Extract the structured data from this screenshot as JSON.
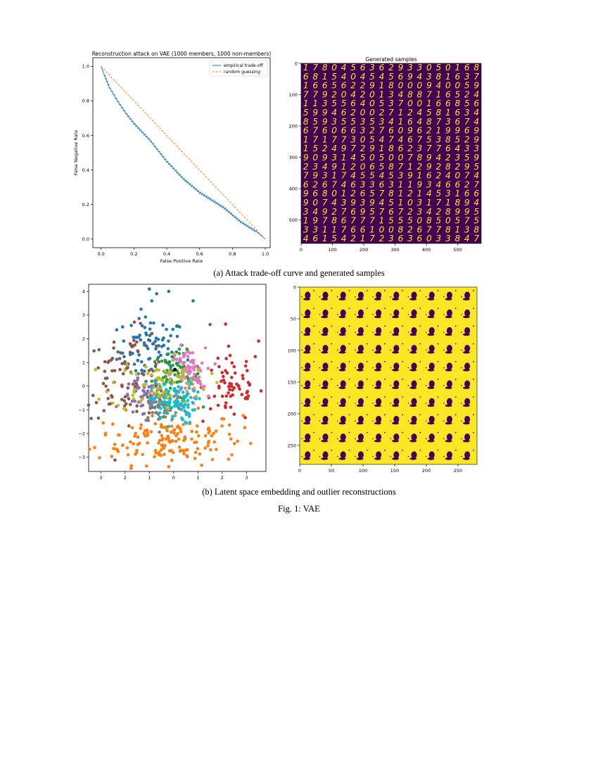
{
  "figure": {
    "caption_a": "(a) Attack trade-off curve and generated samples",
    "caption_b": "(b) Latent space embedding and outlier reconstructions",
    "caption_fig": "Fig. 1: VAE"
  },
  "colors": {
    "viridis_dark": "#440154",
    "viridis_yellow": "#fde725",
    "line_blue": "#1f77b4",
    "line_orange": "#ff7f0e"
  },
  "samples_panel": {
    "title": "Generated samples",
    "x_ticks": [
      "0",
      "100",
      "200",
      "300",
      "400",
      "500"
    ],
    "y_ticks": [
      "0",
      "100",
      "200",
      "300",
      "400",
      "500"
    ],
    "digit_rows": [
      "1780456362933050168",
      "6815404545694381637",
      "1665622918000940059",
      "7792042013488716524",
      "1135564053700166856",
      "5994620027124581634",
      "8593553534164873674",
      "6760663276096219969",
      "1717730547467538529",
      "1524972918623776433",
      "9093145050078942359",
      "2349120658712928295",
      "7931745545391624074",
      "6267463363119346627",
      "9680126578121453166",
      "9074393945103171894",
      "3492769576723428995",
      "1978677715550850575",
      "3311766100826778138",
      "4615421723636033847"
    ]
  },
  "outliers_panel": {
    "x_ticks": [
      "0",
      "50",
      "100",
      "150",
      "200",
      "250"
    ],
    "y_ticks": [
      "0",
      "50",
      "100",
      "150",
      "200",
      "250"
    ]
  },
  "chart_data": [
    {
      "type": "line",
      "title": "Reconstruction attack on VAE (1000 members, 1000 non-members)",
      "xlabel": "False Positive Rate",
      "ylabel": "False Negative Rate",
      "xlim": [
        -0.05,
        1.03
      ],
      "ylim": [
        -0.05,
        1.05
      ],
      "x_ticks": [
        0.0,
        0.2,
        0.4,
        0.6,
        0.8,
        1.0
      ],
      "y_ticks": [
        0.0,
        0.2,
        0.4,
        0.6,
        0.8,
        1.0
      ],
      "x_tick_labels": [
        "0.0",
        "0.2",
        "0.4",
        "0.6",
        "0.8",
        "1.0"
      ],
      "y_tick_labels": [
        "0.0",
        "0.2",
        "0.4",
        "0.6",
        "0.8",
        "1.0"
      ],
      "legend": "top-right",
      "grid": false,
      "series": [
        {
          "name": "empirical trade-off",
          "style": "solid",
          "x": [
            0.0,
            0.02,
            0.05,
            0.1,
            0.15,
            0.2,
            0.25,
            0.3,
            0.35,
            0.4,
            0.45,
            0.5,
            0.55,
            0.6,
            0.65,
            0.7,
            0.75,
            0.8,
            0.85,
            0.9,
            0.95,
            1.0
          ],
          "y": [
            1.0,
            0.95,
            0.88,
            0.8,
            0.73,
            0.67,
            0.62,
            0.57,
            0.51,
            0.45,
            0.4,
            0.35,
            0.31,
            0.27,
            0.24,
            0.21,
            0.18,
            0.14,
            0.1,
            0.07,
            0.04,
            0.0
          ]
        },
        {
          "name": "random guessing",
          "style": "dashed",
          "x": [
            0.0,
            1.0
          ],
          "y": [
            1.0,
            0.0
          ]
        }
      ]
    },
    {
      "type": "scatter",
      "title": "",
      "xlabel": "",
      "ylabel": "",
      "xlim": [
        -3.5,
        3.8
      ],
      "ylim": [
        -3.6,
        4.3
      ],
      "x_ticks": [
        -3,
        -2,
        -1,
        0,
        1,
        2,
        3
      ],
      "x_tick_labels": [
        "3",
        "2",
        "1",
        "0",
        "1",
        "2",
        "3"
      ],
      "y_ticks": [
        4,
        3,
        2,
        1,
        0,
        -1,
        -2,
        -3
      ],
      "y_tick_labels": [
        "4",
        "3",
        "2",
        "1",
        "0",
        "−1",
        "−2",
        "−3"
      ],
      "grid": false,
      "clusters": [
        {
          "label": "0",
          "color": "#1f77b4",
          "center": [
            -0.9,
            1.5
          ],
          "spread": [
            0.7,
            0.7
          ],
          "count": 95,
          "points": [
            [
              -1.0,
              4.1
            ],
            [
              0.8,
              3.6
            ],
            [
              -0.7,
              3.9
            ],
            [
              -2.1,
              2.5
            ],
            [
              -0.9,
              3.6
            ],
            [
              -0.2,
              4.0
            ]
          ]
        },
        {
          "label": "1",
          "color": "#ff7f0e",
          "center": [
            -0.2,
            -2.2
          ],
          "spread": [
            1.5,
            0.55
          ],
          "count": 160,
          "points": [
            [
              -0.2,
              -3.4
            ],
            [
              1.6,
              -3.1
            ],
            [
              -2.1,
              -2.5
            ]
          ]
        },
        {
          "label": "2",
          "color": "#2ca02c",
          "center": [
            0.1,
            0.4
          ],
          "spread": [
            0.5,
            0.5
          ],
          "count": 70,
          "points": []
        },
        {
          "label": "3",
          "color": "#d62728",
          "center": [
            2.4,
            0.0
          ],
          "spread": [
            0.6,
            0.8
          ],
          "count": 65,
          "points": [
            [
              3.5,
              1.9
            ],
            [
              3.6,
              -0.2
            ]
          ]
        },
        {
          "label": "4",
          "color": "#9467bd",
          "center": [
            -1.3,
            -0.5
          ],
          "spread": [
            0.4,
            0.4
          ],
          "count": 45,
          "points": []
        },
        {
          "label": "5",
          "color": "#8c564b",
          "center": [
            -1.9,
            0.5
          ],
          "spread": [
            0.9,
            0.9
          ],
          "count": 90,
          "points": [
            [
              -3.5,
              -0.8
            ],
            [
              1.5,
              2.6
            ]
          ]
        },
        {
          "label": "6",
          "color": "#e377c2",
          "center": [
            0.6,
            0.5
          ],
          "spread": [
            0.35,
            0.55
          ],
          "count": 80,
          "points": []
        },
        {
          "label": "7",
          "color": "#7f7f7f",
          "center": [
            -0.5,
            -0.8
          ],
          "spread": [
            0.45,
            0.4
          ],
          "count": 70,
          "points": []
        },
        {
          "label": "8",
          "color": "#bcbd22",
          "center": [
            -0.6,
            0.1
          ],
          "spread": [
            1.0,
            0.55
          ],
          "count": 80,
          "points": []
        },
        {
          "label": "9",
          "color": "#17becf",
          "center": [
            0.0,
            -0.7
          ],
          "spread": [
            0.45,
            0.45
          ],
          "count": 90,
          "points": []
        }
      ],
      "outliers": [
        {
          "label": "outlier",
          "color": "#000000",
          "points": [
            [
              0.05,
              0.7
            ]
          ]
        }
      ]
    }
  ]
}
